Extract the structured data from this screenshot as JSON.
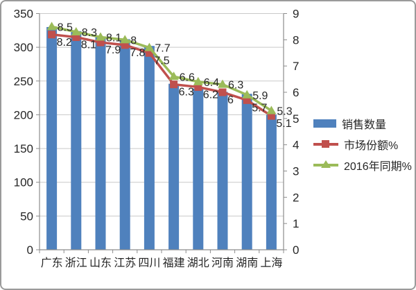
{
  "chart_data": {
    "type": "bar",
    "subtype": "combo-bar-line",
    "categories": [
      "广东",
      "浙江",
      "山东",
      "江苏",
      "四川",
      "福建",
      "湖北",
      "河南",
      "湖南",
      "上海"
    ],
    "series": [
      {
        "name": "销售数量",
        "type": "bar",
        "axis": "left",
        "marker": "rect",
        "color": "#4F81BD",
        "values": [
          330,
          324,
          316,
          312,
          302,
          246,
          239,
          234,
          231,
          200
        ]
      },
      {
        "name": "市场份额%",
        "type": "line",
        "axis": "right",
        "marker": "square",
        "color": "#C0504D",
        "values": [
          8.2,
          8.1,
          7.9,
          7.8,
          7.5,
          6.3,
          6.2,
          6,
          5.7,
          5.1
        ]
      },
      {
        "name": "2016年同期%",
        "type": "line",
        "axis": "right",
        "marker": "triangle",
        "color": "#9BBB59",
        "values": [
          8.5,
          8.3,
          8.1,
          8,
          7.7,
          6.6,
          6.4,
          6.3,
          5.9,
          5.3
        ]
      }
    ],
    "left_axis": {
      "min": 0,
      "max": 350,
      "step": 50,
      "ticks": [
        "0",
        "50",
        "100",
        "150",
        "200",
        "250",
        "300",
        "350"
      ]
    },
    "right_axis": {
      "min": 0,
      "max": 9,
      "step": 1,
      "ticks": [
        "0",
        "1",
        "2",
        "3",
        "4",
        "5",
        "6",
        "7",
        "8",
        "9"
      ]
    },
    "title": "",
    "xlabel": "",
    "ylabel": "",
    "grid": true,
    "legend_position": "right",
    "data_labels_on_lines": true,
    "grid_color": "#c9c9c9",
    "axis_color": "#8c8c8c",
    "label_color": "#262626"
  }
}
